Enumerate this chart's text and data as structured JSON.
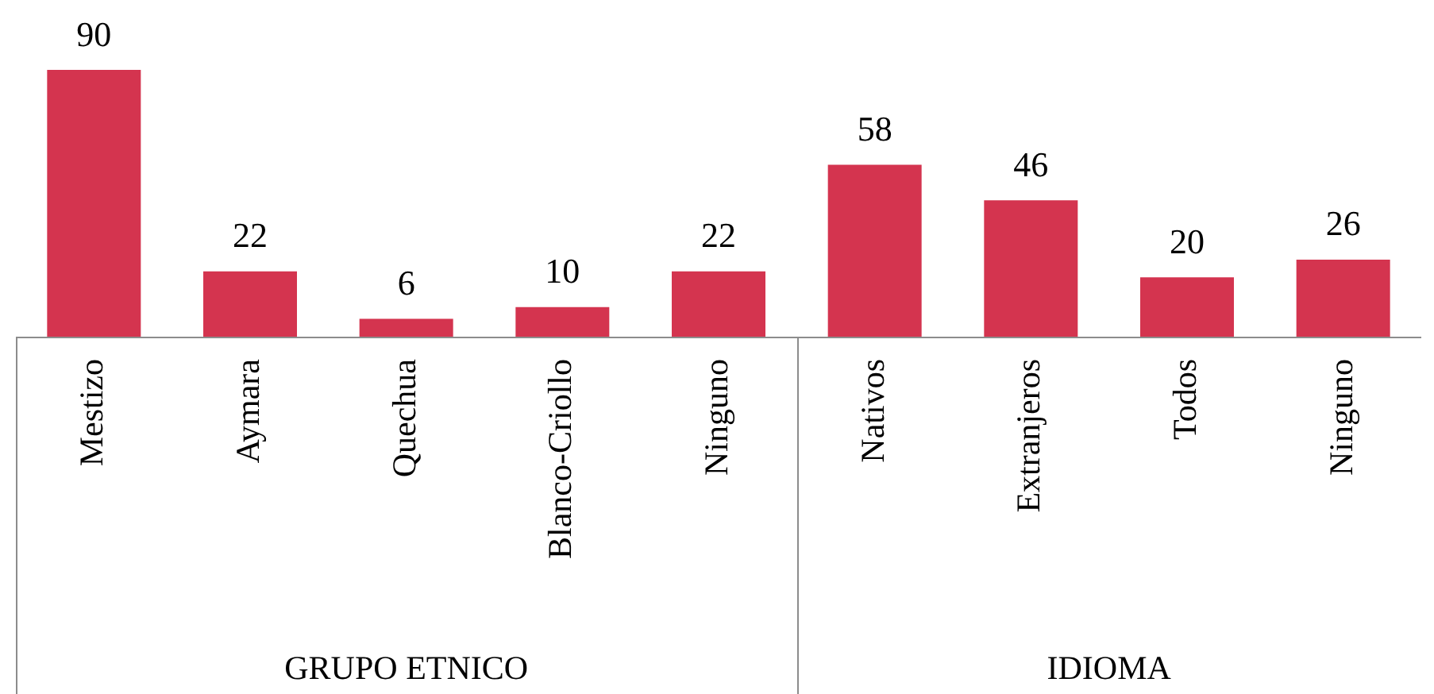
{
  "chart_data": {
    "type": "bar",
    "categories": [
      "Mestizo",
      "Aymara",
      "Quechua",
      "Blanco-Criollo",
      "Ninguno",
      "Nativos",
      "Extranjeros",
      "Todos",
      "Ninguno"
    ],
    "values": [
      90,
      22,
      6,
      10,
      22,
      58,
      46,
      20,
      26
    ],
    "color": "#d4344f",
    "data_labels": true,
    "annotations": [
      "GRUPO ETNICO",
      "IDIOMA"
    ]
  }
}
